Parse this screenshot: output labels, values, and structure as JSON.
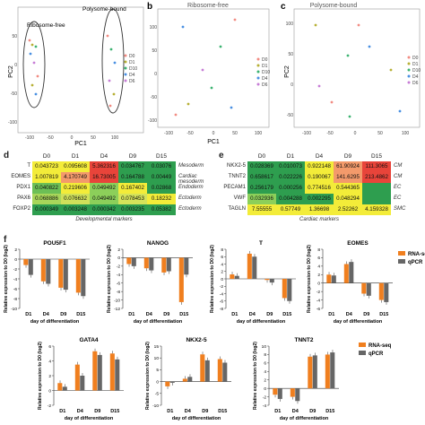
{
  "top_panels": {
    "a": {
      "letter": "",
      "title": "",
      "ylabel": "PC2",
      "xlabel": "PC1",
      "xticks": [
        "-100",
        "-50",
        "0",
        "50",
        "100"
      ],
      "yticks": [
        "-100",
        "-50",
        "0",
        "50"
      ],
      "oval_labels": [
        "Ribosome-free",
        "Polysome-bound"
      ],
      "legend": [
        "D0",
        "D1",
        "D10",
        "D4",
        "D6"
      ]
    },
    "b": {
      "letter": "b",
      "title": "Ribosome-free",
      "xlabel": "PC1",
      "xticks": [
        "-100",
        "-50",
        "0",
        "50",
        "100"
      ],
      "yticks": [
        "-100",
        "-50",
        "0",
        "50",
        "100"
      ],
      "legend": [
        "D0",
        "D1",
        "D10",
        "D4",
        "D6"
      ]
    },
    "c": {
      "letter": "c",
      "title": "Polysome-bound",
      "ylabel": "PC2",
      "xticks": [
        "-100",
        "-50",
        "0",
        "50",
        "100"
      ],
      "yticks": [
        "-50",
        "0",
        "50",
        "100"
      ],
      "legend": [
        "D0",
        "D1",
        "D10",
        "D4",
        "D6"
      ]
    }
  },
  "series_colors": [
    "#f28b82",
    "#b7b035",
    "#3cb371",
    "#4a90e2",
    "#c77dd6"
  ],
  "table_d": {
    "letter": "d",
    "columns": [
      "D0",
      "D1",
      "D4",
      "D9",
      "D15"
    ],
    "rows": [
      {
        "gene": "T",
        "values": [
          "0.043723",
          "0.095608",
          "5.362316",
          "0.034767",
          "0.03076"
        ],
        "colors": [
          "#f3ec39",
          "#f3ec39",
          "#e8443a",
          "#2e9e4f",
          "#2e9e4f"
        ],
        "marker": "Mesoderm"
      },
      {
        "gene": "EOMES",
        "values": [
          "1.007819",
          "4.170749",
          "16.73005",
          "0.164788",
          "0.00449"
        ],
        "colors": [
          "#f3ec39",
          "#f39a6b",
          "#e8443a",
          "#2e9e4f",
          "#2e9e4f"
        ],
        "marker": "Cardiac mesoderm"
      },
      {
        "gene": "PDX1",
        "values": [
          "0.040822",
          "0.219606",
          "0.049492",
          "0.167402",
          "0.02868"
        ],
        "colors": [
          "#6cbf56",
          "#f3ec39",
          "#8ccf5a",
          "#f3ec39",
          "#2e9e4f"
        ],
        "marker": "Endoderm"
      },
      {
        "gene": "PAX6",
        "values": [
          "0.068886",
          "0.076632",
          "0.049492",
          "0.078453",
          "0.18232"
        ],
        "colors": [
          "#a8d65a",
          "#cfe05a",
          "#8ccf5a",
          "#d4e35a",
          "#f3ec39"
        ],
        "marker": "Ectoderm"
      },
      {
        "gene": "FOXP2",
        "values": [
          "0.000349",
          "0.003248",
          "0.000342",
          "0.003235",
          "0.05382"
        ],
        "colors": [
          "#2e9e4f",
          "#2e9e4f",
          "#2e9e4f",
          "#2e9e4f",
          "#2e9e4f"
        ],
        "marker": "Ectoderm"
      }
    ],
    "caption": "Developmental markers"
  },
  "table_e": {
    "letter": "e",
    "columns": [
      "D0",
      "D1",
      "D4",
      "D9",
      "D15"
    ],
    "rows": [
      {
        "gene": "NKX2-5",
        "values": [
          "0.028369",
          "0.010073",
          "0.922148",
          "61.90924",
          "111.3065"
        ],
        "colors": [
          "#2e9e4f",
          "#2e9e4f",
          "#f3ec39",
          "#f39a6b",
          "#e8443a"
        ],
        "marker": "CM"
      },
      {
        "gene": "TNNT2",
        "values": [
          "0.658617",
          "0.022226",
          "0.190067",
          "141.6295",
          "213.4862"
        ],
        "colors": [
          "#2e9e4f",
          "#2e9e4f",
          "#f3ec39",
          "#f39a6b",
          "#e8443a"
        ],
        "marker": "CM"
      },
      {
        "gene": "PECAM1",
        "values": [
          "0.256179",
          "0.000256",
          "0.774516",
          "0.544365",
          ""
        ],
        "colors": [
          "#2e9e4f",
          "#2e9e4f",
          "#f3ec39",
          "#f3ec39",
          "#2e9e4f"
        ],
        "marker": "EC"
      },
      {
        "gene": "VWF",
        "values": [
          "0.032936",
          "0.004288",
          "0.002295",
          "0.048294",
          ""
        ],
        "colors": [
          "#8ccf5a",
          "#2e9e4f",
          "#2e9e4f",
          "#f3ec39",
          "#2e9e4f"
        ],
        "marker": "EC"
      },
      {
        "gene": "TAGLN",
        "values": [
          "7.55555",
          "0.57749",
          "1.36698",
          "2.52262",
          "4.159328"
        ],
        "colors": [
          "#f3ec39",
          "#f3ec39",
          "#f3ec39",
          "#f3ec39",
          "#f3ec39"
        ],
        "marker": "SMC"
      }
    ],
    "caption": "Cardiac markers"
  },
  "panel_f": {
    "letter": "f",
    "ylabel": "Relative expression to D0 (log2)",
    "xlabel": "day of differentiation",
    "legend": [
      "RNA-seq",
      "qPCR"
    ],
    "legend_colors": [
      "#f07f1f",
      "#666666"
    ]
  },
  "chart_data": [
    {
      "type": "bar",
      "title": "POU5F1",
      "categories": [
        "D1",
        "D4",
        "D9",
        "D15"
      ],
      "ylim": [
        -10,
        2
      ],
      "yticks": [
        "2",
        "0",
        "-2",
        "-4",
        "-6",
        "-8",
        "-10"
      ],
      "series": [
        {
          "name": "RNA-seq",
          "values": [
            -1.2,
            -4.5,
            -5.8,
            -6.8
          ]
        },
        {
          "name": "qPCR",
          "values": [
            -3.2,
            -5.0,
            -6.2,
            -7.5
          ]
        }
      ]
    },
    {
      "type": "bar",
      "title": "NANOG",
      "categories": [
        "D1",
        "D4",
        "D9",
        "D15"
      ],
      "ylim": [
        -12,
        2
      ],
      "yticks": [
        "2",
        "0",
        "-2",
        "-4",
        "-6",
        "-8",
        "-10",
        "-12"
      ],
      "series": [
        {
          "name": "RNA-seq",
          "values": [
            -1.5,
            -2.5,
            -3.5,
            -10.5
          ]
        },
        {
          "name": "qPCR",
          "values": [
            -2.0,
            -3.0,
            -3.2,
            -4.0
          ]
        }
      ]
    },
    {
      "type": "bar",
      "title": "T",
      "categories": [
        "D1",
        "D4",
        "D9",
        "D15"
      ],
      "ylim": [
        -8,
        8
      ],
      "yticks": [
        "8",
        "6",
        "4",
        "2",
        "0",
        "-2",
        "-4",
        "-6",
        "-8"
      ],
      "series": [
        {
          "name": "RNA-seq",
          "values": [
            1.2,
            6.8,
            -0.3,
            -5.2
          ]
        },
        {
          "name": "qPCR",
          "values": [
            0.8,
            6.0,
            -1.0,
            -6.0
          ]
        }
      ]
    },
    {
      "type": "bar",
      "title": "EOMES",
      "categories": [
        "D1",
        "D4",
        "D9",
        "D15"
      ],
      "ylim": [
        -6,
        8
      ],
      "yticks": [
        "8",
        "6",
        "4",
        "2",
        "0",
        "-2",
        "-4",
        "-6"
      ],
      "series": [
        {
          "name": "RNA-seq",
          "values": [
            2.0,
            4.5,
            -2.5,
            -4.0
          ]
        },
        {
          "name": "qPCR",
          "values": [
            1.8,
            5.0,
            -3.0,
            -4.5
          ]
        }
      ]
    },
    {
      "type": "bar",
      "title": "GATA4",
      "categories": [
        "D1",
        "D4",
        "D9",
        "D15"
      ],
      "ylim": [
        -2,
        6
      ],
      "yticks": [
        "6",
        "4",
        "2",
        "0",
        "-2"
      ],
      "series": [
        {
          "name": "RNA-seq",
          "values": [
            1.0,
            3.5,
            5.3,
            5.0
          ]
        },
        {
          "name": "qPCR",
          "values": [
            0.5,
            2.0,
            4.8,
            4.2
          ]
        }
      ]
    },
    {
      "type": "bar",
      "title": "NKX2-5",
      "categories": [
        "D1",
        "D4",
        "D9",
        "D15"
      ],
      "ylim": [
        -10,
        15
      ],
      "yticks": [
        "15",
        "10",
        "5",
        "0",
        "-5",
        "-10"
      ],
      "series": [
        {
          "name": "RNA-seq",
          "values": [
            -2.0,
            1.2,
            11.5,
            9.5
          ]
        },
        {
          "name": "qPCR",
          "values": [
            -0.5,
            2.0,
            9.0,
            8.0
          ]
        }
      ]
    },
    {
      "type": "bar",
      "title": "TNNT2",
      "categories": [
        "D1",
        "D4",
        "D9",
        "D15"
      ],
      "ylim": [
        -4,
        10
      ],
      "yticks": [
        "10",
        "8",
        "6",
        "4",
        "2",
        "0",
        "-2",
        "-4"
      ],
      "series": [
        {
          "name": "RNA-seq",
          "values": [
            -1.5,
            -2.0,
            7.5,
            8.0
          ]
        },
        {
          "name": "qPCR",
          "values": [
            -2.5,
            -3.0,
            7.8,
            8.5
          ]
        }
      ]
    }
  ]
}
